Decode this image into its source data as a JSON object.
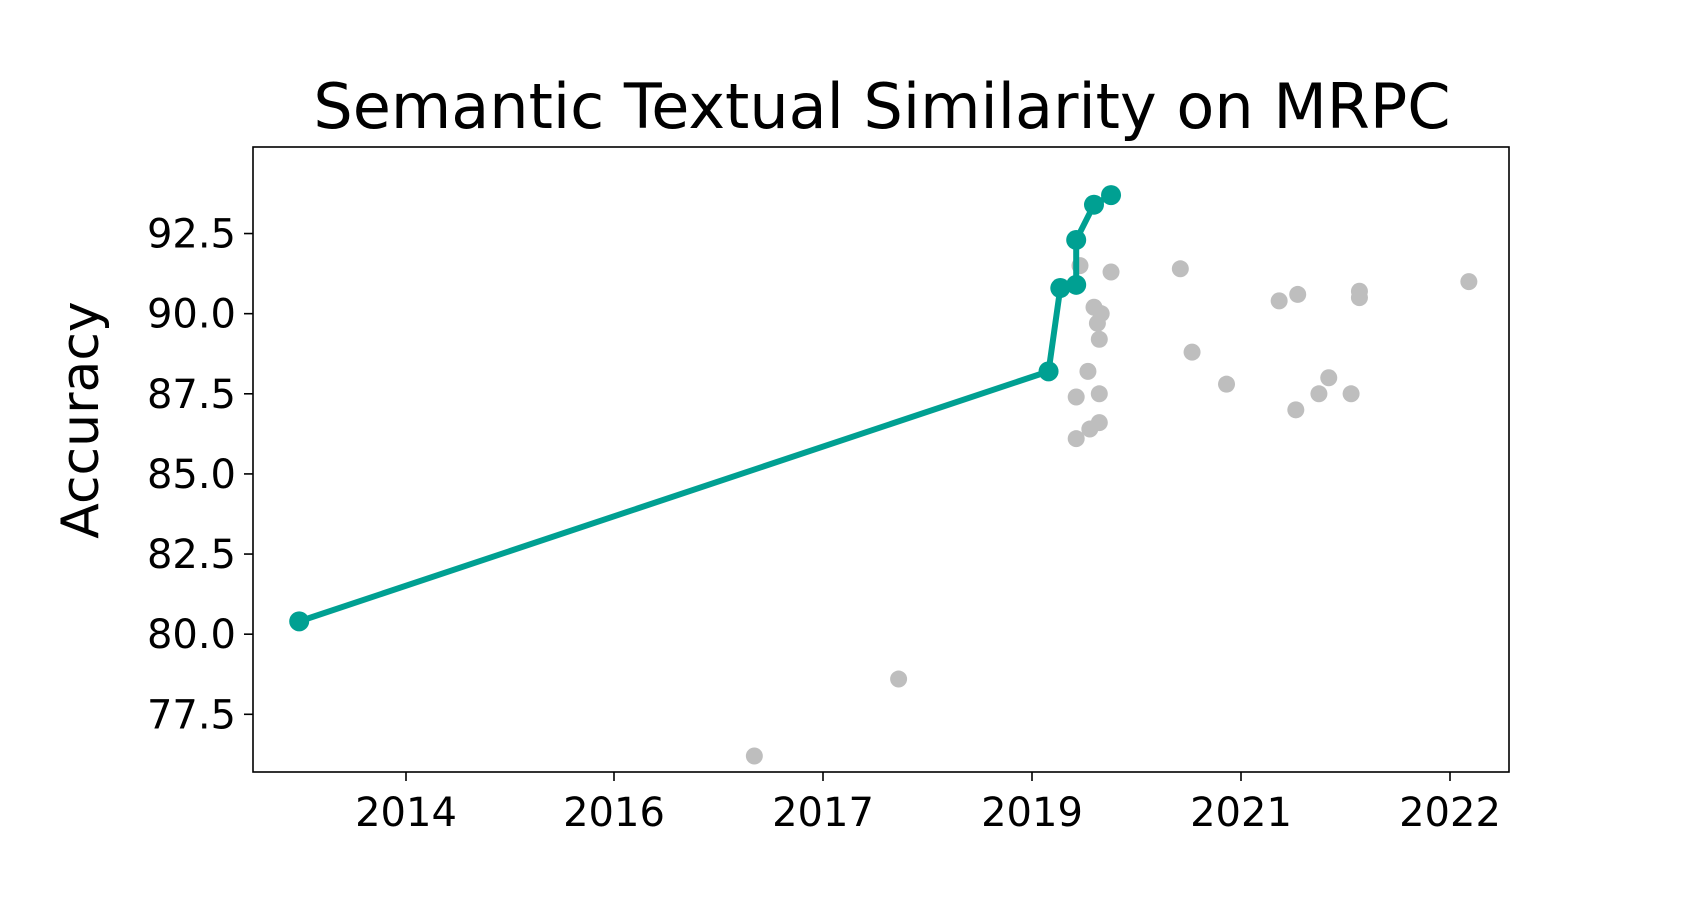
{
  "chart_data": {
    "type": "scatter",
    "title": "Semantic Textual Similarity on MRPC",
    "xlabel": "",
    "ylabel": "Accuracy",
    "x_ticks": [
      "2014",
      "2016",
      "2017",
      "2019",
      "2021",
      "2022"
    ],
    "y_ticks": [
      "77.5",
      "80.0",
      "82.5",
      "85.0",
      "87.5",
      "90.0",
      "92.5"
    ],
    "xlim": [
      "2013-04-01",
      "2022-05-01"
    ],
    "ylim": [
      75.7,
      95.2
    ],
    "grid": false,
    "colors": {
      "sota": "#00a092",
      "other": "#bebebe"
    },
    "series": [
      {
        "values": [
          {
            "x": "2013-08-01",
            "y": 80.4
          },
          {
            "x": "2019-01-01",
            "y": 88.2
          },
          {
            "x": "2019-02-01",
            "y": 90.8
          },
          {
            "x": "2019-03-15",
            "y": 90.9
          },
          {
            "x": "2019-03-15",
            "y": 92.3
          },
          {
            "x": "2019-05-01",
            "y": 93.4
          },
          {
            "x": "2019-06-15",
            "y": 93.7
          }
        ]
      },
      {
        "values": [
          {
            "x": "2016-11-15",
            "y": 76.2
          },
          {
            "x": "2017-12-01",
            "y": 78.6
          },
          {
            "x": "2019-03-15",
            "y": 87.4
          },
          {
            "x": "2019-03-15",
            "y": 86.1
          },
          {
            "x": "2019-03-25",
            "y": 91.5
          },
          {
            "x": "2019-04-15",
            "y": 88.2
          },
          {
            "x": "2019-04-20",
            "y": 86.4
          },
          {
            "x": "2019-05-01",
            "y": 90.2
          },
          {
            "x": "2019-05-10",
            "y": 89.7
          },
          {
            "x": "2019-05-15",
            "y": 89.2
          },
          {
            "x": "2019-05-15",
            "y": 87.5
          },
          {
            "x": "2019-05-15",
            "y": 86.6
          },
          {
            "x": "2019-05-20",
            "y": 90.0
          },
          {
            "x": "2019-06-15",
            "y": 91.3
          },
          {
            "x": "2019-12-15",
            "y": 91.4
          },
          {
            "x": "2020-01-15",
            "y": 88.8
          },
          {
            "x": "2020-04-15",
            "y": 87.8
          },
          {
            "x": "2020-09-01",
            "y": 90.4
          },
          {
            "x": "2020-10-15",
            "y": 87.0
          },
          {
            "x": "2020-10-20",
            "y": 90.6
          },
          {
            "x": "2020-12-15",
            "y": 87.5
          },
          {
            "x": "2021-01-10",
            "y": 88.0
          },
          {
            "x": "2021-03-10",
            "y": 87.5
          },
          {
            "x": "2021-04-01",
            "y": 90.7
          },
          {
            "x": "2021-04-01",
            "y": 90.5
          },
          {
            "x": "2022-01-15",
            "y": 91.0
          }
        ]
      }
    ]
  }
}
